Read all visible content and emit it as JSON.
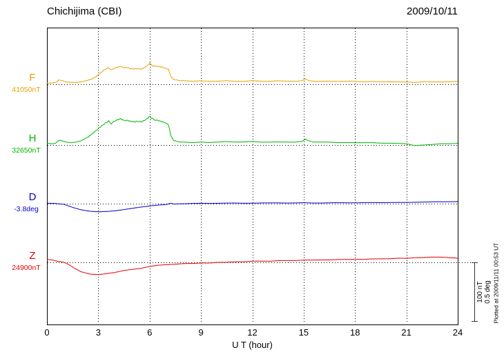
{
  "chart_data": {
    "type": "line",
    "title": "Chichijima (CBI)",
    "date": "2009/10/11",
    "xlabel": "U T (hour)",
    "xlim": [
      0,
      24
    ],
    "xticks": [
      0,
      3,
      6,
      9,
      12,
      15,
      18,
      21,
      24
    ],
    "grid": "dotted vertical lines at xticks; dotted horizontal baseline per trace",
    "legend_position": "left margin",
    "scale_bar": {
      "label_nT": "100 nT",
      "label_deg": "0.5 deg",
      "nT": 100,
      "deg": 0.5
    },
    "plotted_at": "Plotted at 2009/11/11 00:53 UT",
    "offsets_relative_to_baseline": true,
    "series": [
      {
        "name": "F",
        "unit": "nT",
        "color": "#e8a000",
        "baseline_label": "41050nT",
        "baseline_value": 41050,
        "points": [
          [
            0,
            2
          ],
          [
            0.3,
            2
          ],
          [
            0.5,
            3
          ],
          [
            0.7,
            7
          ],
          [
            0.9,
            6
          ],
          [
            1.1,
            4
          ],
          [
            1.4,
            3
          ],
          [
            1.7,
            3
          ],
          [
            2,
            4
          ],
          [
            2.3,
            6
          ],
          [
            2.6,
            9
          ],
          [
            2.8,
            12
          ],
          [
            3,
            16
          ],
          [
            3.2,
            21
          ],
          [
            3.4,
            25
          ],
          [
            3.6,
            28
          ],
          [
            3.75,
            24
          ],
          [
            3.9,
            27
          ],
          [
            4.1,
            29
          ],
          [
            4.3,
            30
          ],
          [
            4.5,
            28
          ],
          [
            4.7,
            28
          ],
          [
            4.9,
            26
          ],
          [
            5.1,
            26
          ],
          [
            5.3,
            27
          ],
          [
            5.5,
            26
          ],
          [
            5.7,
            29
          ],
          [
            5.9,
            33
          ],
          [
            6,
            36
          ],
          [
            6.15,
            32
          ],
          [
            6.3,
            31
          ],
          [
            6.5,
            30
          ],
          [
            6.7,
            29
          ],
          [
            6.9,
            27
          ],
          [
            7.1,
            25
          ],
          [
            7.25,
            13
          ],
          [
            7.4,
            8
          ],
          [
            7.6,
            7
          ],
          [
            7.8,
            6
          ],
          [
            8,
            6
          ],
          [
            8.5,
            5
          ],
          [
            9,
            6
          ],
          [
            9.5,
            5
          ],
          [
            10,
            5
          ],
          [
            10.5,
            6
          ],
          [
            11,
            5
          ],
          [
            11.5,
            5
          ],
          [
            12,
            6
          ],
          [
            12.5,
            5
          ],
          [
            13,
            5
          ],
          [
            13.5,
            6
          ],
          [
            14,
            5
          ],
          [
            14.5,
            5
          ],
          [
            14.9,
            6
          ],
          [
            15.1,
            9
          ],
          [
            15.3,
            6
          ],
          [
            15.6,
            5
          ],
          [
            16,
            5
          ],
          [
            16.5,
            5
          ],
          [
            17,
            5
          ],
          [
            17.5,
            5
          ],
          [
            18,
            5
          ],
          [
            18.5,
            4
          ],
          [
            19,
            5
          ],
          [
            19.5,
            4
          ],
          [
            20,
            4
          ],
          [
            20.5,
            4
          ],
          [
            21,
            4
          ],
          [
            21.5,
            3
          ],
          [
            22,
            4
          ],
          [
            22.5,
            4
          ],
          [
            23,
            4
          ],
          [
            23.5,
            4
          ],
          [
            24,
            5
          ]
        ]
      },
      {
        "name": "H",
        "unit": "nT",
        "color": "#00b400",
        "baseline_label": "32650nT",
        "baseline_value": 32650,
        "points": [
          [
            0,
            3
          ],
          [
            0.3,
            2
          ],
          [
            0.5,
            3
          ],
          [
            0.7,
            8
          ],
          [
            0.9,
            7
          ],
          [
            1.1,
            5
          ],
          [
            1.4,
            4
          ],
          [
            1.7,
            5
          ],
          [
            2,
            7
          ],
          [
            2.3,
            12
          ],
          [
            2.6,
            18
          ],
          [
            2.8,
            23
          ],
          [
            3,
            28
          ],
          [
            3.2,
            33
          ],
          [
            3.4,
            37
          ],
          [
            3.6,
            41
          ],
          [
            3.75,
            36
          ],
          [
            3.9,
            40
          ],
          [
            4.1,
            43
          ],
          [
            4.3,
            45
          ],
          [
            4.5,
            42
          ],
          [
            4.7,
            42
          ],
          [
            4.9,
            40
          ],
          [
            5.1,
            39
          ],
          [
            5.3,
            40
          ],
          [
            5.5,
            39
          ],
          [
            5.7,
            42
          ],
          [
            5.9,
            46
          ],
          [
            6,
            49
          ],
          [
            6.15,
            45
          ],
          [
            6.3,
            43
          ],
          [
            6.5,
            42
          ],
          [
            6.7,
            40
          ],
          [
            6.9,
            38
          ],
          [
            7.1,
            34
          ],
          [
            7.25,
            15
          ],
          [
            7.4,
            8
          ],
          [
            7.6,
            6
          ],
          [
            7.8,
            5
          ],
          [
            8,
            5
          ],
          [
            8.5,
            4
          ],
          [
            9,
            5
          ],
          [
            9.5,
            4
          ],
          [
            10,
            5
          ],
          [
            10.5,
            6
          ],
          [
            11,
            5
          ],
          [
            11.5,
            5
          ],
          [
            12,
            6
          ],
          [
            12.5,
            5
          ],
          [
            13,
            5
          ],
          [
            13.5,
            5
          ],
          [
            14,
            5
          ],
          [
            14.5,
            5
          ],
          [
            14.9,
            6
          ],
          [
            15.1,
            10
          ],
          [
            15.3,
            7
          ],
          [
            15.6,
            5
          ],
          [
            16,
            5
          ],
          [
            16.5,
            5
          ],
          [
            17,
            4
          ],
          [
            17.5,
            4
          ],
          [
            18,
            4
          ],
          [
            18.5,
            4
          ],
          [
            19,
            4
          ],
          [
            19.5,
            3
          ],
          [
            20,
            3
          ],
          [
            20.5,
            3
          ],
          [
            21,
            2
          ],
          [
            21.3,
            0
          ],
          [
            21.6,
            -1
          ],
          [
            22,
            0
          ],
          [
            22.5,
            1
          ],
          [
            23,
            2
          ],
          [
            23.5,
            2
          ],
          [
            24,
            3
          ]
        ]
      },
      {
        "name": "D",
        "unit": "deg",
        "color": "#0000cc",
        "baseline_label": "-3.8deg",
        "baseline_value": -3.8,
        "points": [
          [
            0,
            0.005
          ],
          [
            0.5,
            0.002
          ],
          [
            1,
            -0.006
          ],
          [
            1.5,
            -0.032
          ],
          [
            2,
            -0.052
          ],
          [
            2.5,
            -0.064
          ],
          [
            3,
            -0.07
          ],
          [
            3.5,
            -0.067
          ],
          [
            4,
            -0.06
          ],
          [
            4.5,
            -0.05
          ],
          [
            5,
            -0.04
          ],
          [
            5.5,
            -0.029
          ],
          [
            6,
            -0.019
          ],
          [
            6.5,
            -0.012
          ],
          [
            7,
            -0.007
          ],
          [
            7.25,
            0.004
          ],
          [
            7.4,
            -0.004
          ],
          [
            7.7,
            -0.002
          ],
          [
            8,
            0
          ],
          [
            8.5,
            0.002
          ],
          [
            9,
            0.003
          ],
          [
            9.5,
            0.002
          ],
          [
            10,
            0.004
          ],
          [
            10.5,
            0.005
          ],
          [
            11,
            0.005
          ],
          [
            11.5,
            0.004
          ],
          [
            12,
            0.005
          ],
          [
            12.5,
            0.006
          ],
          [
            13,
            0.006
          ],
          [
            13.5,
            0.007
          ],
          [
            14,
            0.006
          ],
          [
            14.5,
            0.006
          ],
          [
            15,
            0.008
          ],
          [
            15.5,
            0.006
          ],
          [
            16,
            0.006
          ],
          [
            16.5,
            0.007
          ],
          [
            17,
            0.008
          ],
          [
            17.5,
            0.008
          ],
          [
            18,
            0.008
          ],
          [
            18.5,
            0.008
          ],
          [
            19,
            0.009
          ],
          [
            19.5,
            0.009
          ],
          [
            20,
            0.01
          ],
          [
            20.5,
            0.01
          ],
          [
            21,
            0.01
          ],
          [
            21.5,
            0.012
          ],
          [
            22,
            0.014
          ],
          [
            22.5,
            0.015
          ],
          [
            23,
            0.016
          ],
          [
            23.5,
            0.017
          ],
          [
            24,
            0.018
          ]
        ]
      },
      {
        "name": "Z",
        "unit": "nT",
        "color": "#e60000",
        "baseline_label": "24900nT",
        "baseline_value": 24900,
        "points": [
          [
            0,
            5
          ],
          [
            0.3,
            4
          ],
          [
            0.6,
            2
          ],
          [
            1,
            0
          ],
          [
            1.3,
            -4
          ],
          [
            1.6,
            -10
          ],
          [
            2,
            -16
          ],
          [
            2.5,
            -20
          ],
          [
            3,
            -21
          ],
          [
            3.5,
            -19
          ],
          [
            4,
            -17
          ],
          [
            4.5,
            -14
          ],
          [
            5,
            -12
          ],
          [
            5.5,
            -10
          ],
          [
            6,
            -7
          ],
          [
            6.5,
            -5
          ],
          [
            7,
            -4
          ],
          [
            7.5,
            -3
          ],
          [
            8,
            -2
          ],
          [
            8.5,
            -2
          ],
          [
            9,
            -1
          ],
          [
            9.5,
            -1
          ],
          [
            10,
            0
          ],
          [
            10.5,
            0
          ],
          [
            11,
            1
          ],
          [
            11.5,
            1
          ],
          [
            12,
            2
          ],
          [
            12.5,
            2
          ],
          [
            13,
            2
          ],
          [
            13.5,
            3
          ],
          [
            14,
            3
          ],
          [
            14.5,
            3
          ],
          [
            15,
            4
          ],
          [
            15.5,
            4
          ],
          [
            16,
            4
          ],
          [
            16.5,
            4
          ],
          [
            17,
            5
          ],
          [
            17.5,
            5
          ],
          [
            18,
            5
          ],
          [
            18.5,
            5
          ],
          [
            19,
            6
          ],
          [
            19.5,
            6
          ],
          [
            20,
            6
          ],
          [
            20.5,
            7
          ],
          [
            21,
            7
          ],
          [
            21.5,
            8
          ],
          [
            22,
            8
          ],
          [
            22.5,
            9
          ],
          [
            23,
            9
          ],
          [
            23.5,
            8
          ],
          [
            24,
            7
          ]
        ]
      }
    ]
  }
}
